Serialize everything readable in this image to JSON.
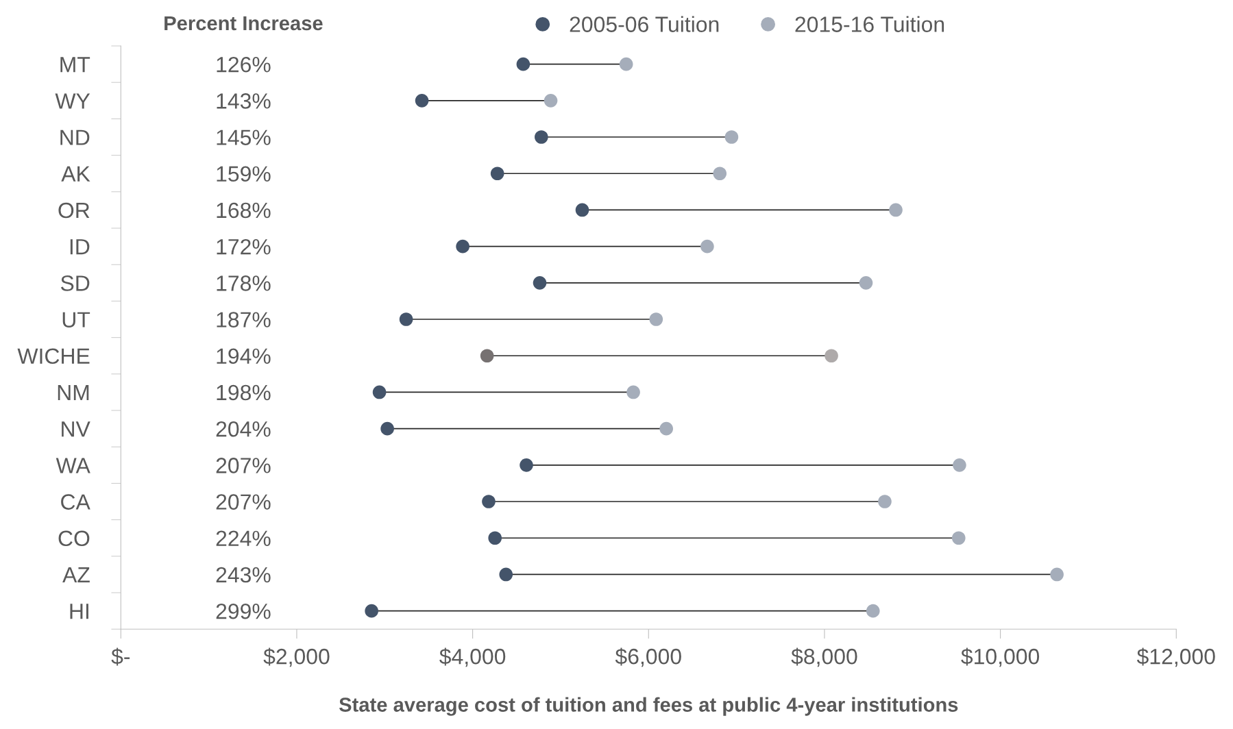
{
  "chart_data": {
    "type": "scatter",
    "orientation": "horizontal",
    "xlabel": "State average cost of tuition and fees at public 4-year institutions",
    "categories": [
      "MT",
      "WY",
      "ND",
      "AK",
      "OR",
      "ID",
      "SD",
      "UT",
      "WICHE",
      "NM",
      "NV",
      "WA",
      "CA",
      "CO",
      "AZ",
      "HI"
    ],
    "series": [
      {
        "name": "2005-06 Tuition",
        "color": "#44546a",
        "colors": [
          "#44546a",
          "#44546a",
          "#44546a",
          "#44546a",
          "#44546a",
          "#44546a",
          "#44546a",
          "#44546a",
          "#767171",
          "#44546a",
          "#44546a",
          "#44546a",
          "#44546a",
          "#44546a",
          "#44546a",
          "#44546a"
        ],
        "values": [
          4575,
          3423,
          4781,
          4281,
          5246,
          3887,
          4763,
          3244,
          4164,
          2940,
          3030,
          4611,
          4182,
          4254,
          4379,
          2851
        ]
      },
      {
        "name": "2015-16 Tuition",
        "color": "#a5adba",
        "colors": [
          "#a5adba",
          "#a5adba",
          "#a5adba",
          "#a5adba",
          "#a5adba",
          "#a5adba",
          "#a5adba",
          "#a5adba",
          "#aeaaaa",
          "#a5adba",
          "#a5adba",
          "#a5adba",
          "#a5adba",
          "#a5adba",
          "#a5adba",
          "#a5adba"
        ],
        "values": [
          5746,
          4888,
          6944,
          6810,
          8811,
          6667,
          8472,
          6086,
          8079,
          5827,
          6202,
          9535,
          8686,
          9526,
          10643,
          8552
        ]
      }
    ],
    "xlim": [
      0,
      12000
    ],
    "xticks": [
      {
        "value": 0,
        "label": "$-"
      },
      {
        "value": 2000,
        "label": "$2,000"
      },
      {
        "value": 4000,
        "label": "$4,000"
      },
      {
        "value": 6000,
        "label": "$6,000"
      },
      {
        "value": 8000,
        "label": "$8,000"
      },
      {
        "value": 10000,
        "label": "$10,000"
      },
      {
        "value": 12000,
        "label": "$12,000"
      }
    ],
    "annotations": [
      "Percent Increase",
      "126%",
      "143%",
      "145%",
      "159%",
      "168%",
      "172%",
      "178%",
      "187%",
      "194%",
      "198%",
      "204%",
      "207%",
      "207%",
      "224%",
      "243%",
      "299%"
    ],
    "legend": "top",
    "grid": false,
    "marker": "circle"
  }
}
